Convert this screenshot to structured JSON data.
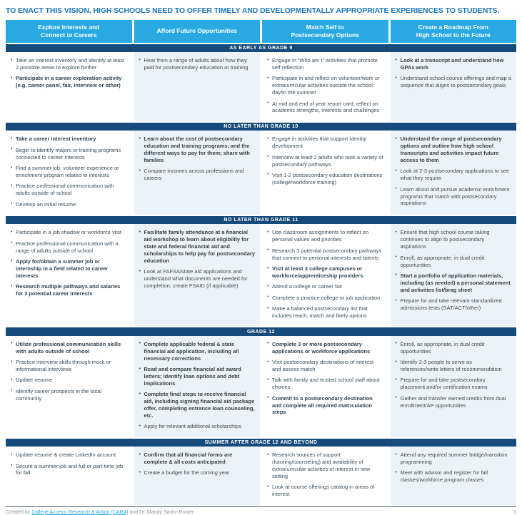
{
  "title": "TO ENACT THIS VISION, HIGH SCHOOLS NEED TO OFFER TIMELY AND DEVELOPMENTALLY APPROPRIATE EXPERIENCES TO STUDENTS.",
  "columns": [
    "Explore Interests and\nConnect to Careers",
    "Afford Future Opportunities",
    "Match Self to\nPostsecondary Options",
    "Create a Roadmap From\nHigh School to the Future"
  ],
  "colors": {
    "accent_blue": "#29a9e1",
    "band_navy": "#164a7b",
    "title_blue": "#1c76bc",
    "tint_column": "#eaf3fa",
    "body_text": "#3d4d58"
  },
  "sections": [
    {
      "label": "AS EARLY AS GRADE 9",
      "cells": [
        [
          {
            "t": "Take an interest inventory and identify at least 2 possible areas to explore further",
            "b": false
          },
          {
            "t": "Participate in a career exploration activity (e.g. career panel, fair, interview or other)",
            "b": true
          }
        ],
        [
          {
            "t": "Hear from a range of adults about how they paid for postsecondary education or training",
            "b": false
          }
        ],
        [
          {
            "t": "Engage in “Who am I” activities that promote self reflection",
            "b": false
          },
          {
            "t": "Participate in and reflect on volunteer/work or extracurricular activities outside the school day/in the summer",
            "b": false
          },
          {
            "t": "At mid and end of year report card, reflect on academic strengths, interests and challenges",
            "b": false
          }
        ],
        [
          {
            "t": "Look at a transcript and understand how GPAs work",
            "b": true
          },
          {
            "t": "Understand school course offerings and map a sequence that aligns to postsecondary goals",
            "b": false
          }
        ]
      ]
    },
    {
      "label": "NO LATER THAN GRADE 10",
      "cells": [
        [
          {
            "t": "Take a career interest inventory",
            "b": true
          },
          {
            "t": "Begin to identify majors or training programs connected to career interests",
            "b": false
          },
          {
            "t": "Find a summer job, volunteer experience or enrichment program related to interests",
            "b": false
          },
          {
            "t": "Practice professional communication with adults outside of school",
            "b": false
          },
          {
            "t": "Develop an initial resume",
            "b": false
          }
        ],
        [
          {
            "t": "Learn about the cost of postsecondary education and training programs, and the different ways to pay for them; share with families",
            "b": true
          },
          {
            "t": "Compare incomes across professions and careers",
            "b": false
          }
        ],
        [
          {
            "t": "Engage in activities that support identity development",
            "b": false
          },
          {
            "t": "Interview at least 2 adults who took a variety of postsecondary pathways",
            "b": false
          },
          {
            "t": "Visit 1-2 postsecondary education destinations (college/workforce training)",
            "b": false
          }
        ],
        [
          {
            "t": "Understand the range of postsecondary options and outline how high school transcripts and activities impact future access to them",
            "b": true
          },
          {
            "t": "Look at 2-3 postsecondary applications to see what they require",
            "b": false
          },
          {
            "t": "Learn about and pursue academic enrichment programs that match with postsecondary aspirations",
            "b": false
          }
        ]
      ]
    },
    {
      "label": "NO LATER THAN GRADE 11",
      "cells": [
        [
          {
            "t": "Participate in a job shadow or workforce visit",
            "b": false
          },
          {
            "t": "Practice professional communication with a range of adults outside of school",
            "b": false
          },
          {
            "t": "Apply for/obtain a summer job or internship in a field related to career interests",
            "b": true
          },
          {
            "t": "Research multiple pathways and salaries for 3 potential career interests",
            "b": true
          }
        ],
        [
          {
            "t": "Facilitate family attendance at a financial aid workshop to learn about eligibility for state and federal financial aid and scholarships to help pay for postsecondary education",
            "b": true
          },
          {
            "t": "Look at FAFSA/state aid applications and understand what documents are needed for completion; create FSAID (if applicable)",
            "b": false
          }
        ],
        [
          {
            "t": "Use classroom assignments to reflect on personal values and priorities",
            "b": false
          },
          {
            "t": "Research 3 potential postsecondary pathways that connect to personal interests and talents",
            "b": false
          },
          {
            "t": "Visit at least 3 college campuses or workforce/apprenticeship providers",
            "b": true
          },
          {
            "t": "Attend a college or career fair",
            "b": false
          },
          {
            "t": "Complete a practice college or job application",
            "b": false
          },
          {
            "t": "Make a balanced postsecondary list that includes reach, match and likely options",
            "b": false
          }
        ],
        [
          {
            "t": "Ensure that high school course taking continues to align to postsecondary aspirations",
            "b": false
          },
          {
            "t": "Enroll, as appropriate, in dual credit opportunities",
            "b": false
          },
          {
            "t": "Start a portfolio of application materials, including (as needed) a personal statement and activities list/brag sheet",
            "b": true
          },
          {
            "t": "Prepare for and take relevant standardized admissions tests (SAT/ACT/other)",
            "b": false
          }
        ]
      ]
    },
    {
      "label": "GRADE 12",
      "cells": [
        [
          {
            "t": "Utilize professional communication skills with adults outside of school",
            "b": true
          },
          {
            "t": "Practice interview skills through mock or informational interviews",
            "b": false
          },
          {
            "t": "Update resume",
            "b": false
          },
          {
            "t": "Identify career prospects in the local community",
            "b": false
          }
        ],
        [
          {
            "t": "Complete applicable federal & state financial aid application, including all necessary corrections",
            "b": true
          },
          {
            "t": "Read and compare financial aid award letters; identify loan options and debt implications",
            "b": true
          },
          {
            "t": "Complete final steps to receive financial aid, including signing financial aid package offer, completing entrance loan counseling, etc.",
            "b": true
          },
          {
            "t": "Apply for relevant additional scholarships",
            "b": false
          }
        ],
        [
          {
            "t": "Complete 3 or more postsecondary applications or workforce applications",
            "b": true
          },
          {
            "t": "Visit postsecondary destinations of interest and assess match",
            "b": false
          },
          {
            "t": "Talk with family and trusted school staff about choices",
            "b": false
          },
          {
            "t": "Commit to a postsecondary destination and complete all required matriculation steps",
            "b": true
          }
        ],
        [
          {
            "t": "Enroll, as appropriate, in dual credit opportunities",
            "b": false
          },
          {
            "t": "Identify 2-3 people to serve as references/write letters of recommendation",
            "b": false
          },
          {
            "t": "Prepare for and take postsecondary placement and/or certification exams",
            "b": false
          },
          {
            "t": "Gather and transfer earned credits from dual enrollment/AP opportunities",
            "b": false
          }
        ]
      ]
    },
    {
      "label": "SUMMER AFTER GRADE 12 AND BEYOND",
      "cells": [
        [
          {
            "t": "Update resume & create LinkedIn account",
            "b": false
          },
          {
            "t": "Secure a summer job and full or part-time job for fall",
            "b": false
          }
        ],
        [
          {
            "t": "Confirm that all financial forms are complete & all costs anticipated",
            "b": true
          },
          {
            "t": "Create a budget for the coming year",
            "b": false
          }
        ],
        [
          {
            "t": "Research sources of support (tutoring/counseling) and availability of extracurricular activities of interest in new setting",
            "b": false
          },
          {
            "t": "Look at course offerings catalog in areas of interest",
            "b": false
          }
        ],
        [
          {
            "t": "Attend any required summer bridge/transition programming",
            "b": false
          },
          {
            "t": "Meet with advisor and register for fall classes/workforce program classes",
            "b": false
          }
        ]
      ]
    }
  ],
  "footer": {
    "prefix": "Created by ",
    "link": "College Access: Research & Action (CARA)",
    "suffix": " and Dr. Mandy Savitz-Romer",
    "page": "3"
  }
}
